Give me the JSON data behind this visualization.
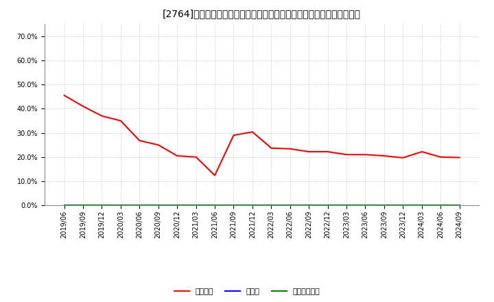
{
  "title": "[2764]　自己資本、のれん、繰延税金資産の総資産に対する比率の推移",
  "x_labels": [
    "2019/06",
    "2019/09",
    "2019/12",
    "2020/03",
    "2020/06",
    "2020/09",
    "2020/12",
    "2021/03",
    "2021/06",
    "2021/09",
    "2021/12",
    "2022/03",
    "2022/06",
    "2022/09",
    "2022/12",
    "2023/03",
    "2023/06",
    "2023/09",
    "2023/12",
    "2024/03",
    "2024/06",
    "2024/09"
  ],
  "equity_values": [
    0.455,
    0.41,
    0.37,
    0.35,
    0.268,
    0.25,
    0.205,
    0.2,
    0.124,
    0.29,
    0.304,
    0.237,
    0.234,
    0.222,
    0.222,
    0.21,
    0.21,
    0.205,
    0.197,
    0.222,
    0.2,
    0.198
  ],
  "noren_values": [
    0.0,
    0.0,
    0.0,
    0.0,
    0.0,
    0.0,
    0.0,
    0.0,
    0.0,
    0.0,
    0.0,
    0.0,
    0.0,
    0.0,
    0.0,
    0.0,
    0.0,
    0.0,
    0.0,
    0.0,
    0.0,
    0.0
  ],
  "deferred_tax_values": [
    0.0,
    0.0,
    0.0,
    0.0,
    0.0,
    0.0,
    0.0,
    0.0,
    0.0,
    0.0,
    0.0,
    0.0,
    0.0,
    0.0,
    0.0,
    0.0,
    0.0,
    0.0,
    0.0,
    0.0,
    0.0,
    0.0
  ],
  "equity_color": "#ff0000",
  "noren_color": "#0000ff",
  "deferred_tax_color": "#008000",
  "background_color": "#ffffff",
  "plot_bg_color": "#ffffff",
  "grid_color": "#aaaaaa",
  "ylim": [
    0.0,
    0.75
  ],
  "yticks": [
    0.0,
    0.1,
    0.2,
    0.3,
    0.4,
    0.5,
    0.6,
    0.7
  ],
  "legend_equity": "自己資本",
  "legend_noren": "のれん",
  "legend_deferred": "繰延税金資産",
  "line_width": 1.5,
  "font_size_title": 10,
  "font_size_ticks": 7,
  "font_size_legend": 8
}
